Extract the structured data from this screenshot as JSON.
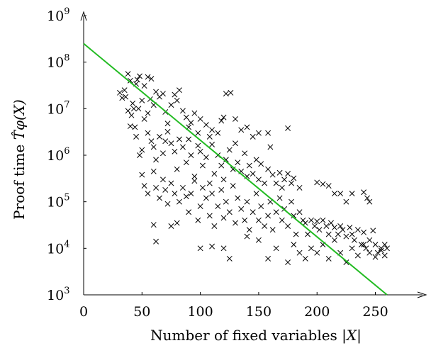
{
  "chart_data": {
    "type": "scatter",
    "title": "",
    "xlabel_text": "Number of fixed variables ",
    "xlabel_math": "|X|",
    "ylabel_text": "Proof time ",
    "ylabel_math": "T̂φ(X)",
    "xlim": [
      0,
      260
    ],
    "ylim": [
      1000,
      1000000000
    ],
    "yscale": "log",
    "grid": false,
    "x_ticks": [
      {
        "value": 0,
        "label": "0"
      },
      {
        "value": 50,
        "label": "50"
      },
      {
        "value": 100,
        "label": "100"
      },
      {
        "value": 150,
        "label": "150"
      },
      {
        "value": 200,
        "label": "200"
      },
      {
        "value": 250,
        "label": "250"
      }
    ],
    "y_ticks": [
      {
        "exp": 3,
        "base": "10",
        "sup": "3"
      },
      {
        "exp": 4,
        "base": "10",
        "sup": "4"
      },
      {
        "exp": 5,
        "base": "10",
        "sup": "5"
      },
      {
        "exp": 6,
        "base": "10",
        "sup": "6"
      },
      {
        "exp": 7,
        "base": "10",
        "sup": "7"
      },
      {
        "exp": 8,
        "base": "10",
        "sup": "8"
      },
      {
        "exp": 9,
        "base": "10",
        "sup": "9"
      }
    ],
    "marker": "x",
    "marker_color": "#000000",
    "fit_line": {
      "color": "#22bb22",
      "x": [
        0,
        260
      ],
      "y": [
        250000000,
        1000
      ]
    },
    "points": [
      [
        31,
        22000000.0
      ],
      [
        33,
        17000000.0
      ],
      [
        35,
        25000000.0
      ],
      [
        36,
        18000000.0
      ],
      [
        38,
        56000000.0
      ],
      [
        40,
        40000000.0
      ],
      [
        42,
        13000000.0
      ],
      [
        43,
        10000000.0
      ],
      [
        45,
        34000000.0
      ],
      [
        46,
        42000000.0
      ],
      [
        48,
        50000000.0
      ],
      [
        50,
        15000000.0
      ],
      [
        52,
        31000000.0
      ],
      [
        55,
        48000000.0
      ],
      [
        58,
        44000000.0
      ],
      [
        38,
        9000000.0
      ],
      [
        41,
        7200000.0
      ],
      [
        44,
        4000000.0
      ],
      [
        47,
        10000000.0
      ],
      [
        52,
        6000000.0
      ],
      [
        55,
        8000000.0
      ],
      [
        57,
        16000000.0
      ],
      [
        60,
        12000000.0
      ],
      [
        62,
        23000000.0
      ],
      [
        65,
        18000000.0
      ],
      [
        68,
        21000000.0
      ],
      [
        70,
        8500000.0
      ],
      [
        72,
        4800000.0
      ],
      [
        75,
        12000000.0
      ],
      [
        78,
        20000000.0
      ],
      [
        80,
        15000000.0
      ],
      [
        82,
        25000000.0
      ],
      [
        85,
        9000000.0
      ],
      [
        88,
        6500000.0
      ],
      [
        90,
        4000000.0
      ],
      [
        92,
        5000000.0
      ],
      [
        95,
        8000000.0
      ],
      [
        98,
        3000000.0
      ],
      [
        100,
        6000000.0
      ],
      [
        105,
        4500000.0
      ],
      [
        108,
        2500000.0
      ],
      [
        110,
        3500000.0
      ],
      [
        115,
        3000000.0
      ],
      [
        118,
        5500000.0
      ],
      [
        120,
        6500000.0
      ],
      [
        122,
        21000000.0
      ],
      [
        126,
        22000000.0
      ],
      [
        130,
        6000000.0
      ],
      [
        135,
        3500000.0
      ],
      [
        140,
        4000000.0
      ],
      [
        145,
        2500000.0
      ],
      [
        150,
        3000000.0
      ],
      [
        158,
        3000000.0
      ],
      [
        175,
        3800000.0
      ],
      [
        40,
        4200000.0
      ],
      [
        45,
        2500000.0
      ],
      [
        48,
        1000000.0
      ],
      [
        50,
        1300000.0
      ],
      [
        55,
        3000000.0
      ],
      [
        58,
        2000000.0
      ],
      [
        60,
        1500000.0
      ],
      [
        62,
        800000.0
      ],
      [
        65,
        2500000.0
      ],
      [
        68,
        1100000.0
      ],
      [
        70,
        2000000.0
      ],
      [
        72,
        3200000.0
      ],
      [
        75,
        1800000.0
      ],
      [
        78,
        1200000.0
      ],
      [
        80,
        500000.0
      ],
      [
        82,
        2200000.0
      ],
      [
        85,
        1500000.0
      ],
      [
        88,
        700000.0
      ],
      [
        90,
        2200000.0
      ],
      [
        92,
        1000000.0
      ],
      [
        95,
        350000.0
      ],
      [
        98,
        1600000.0
      ],
      [
        100,
        1200000.0
      ],
      [
        102,
        600000.0
      ],
      [
        105,
        900000.0
      ],
      [
        108,
        250000.0
      ],
      [
        110,
        1700000.0
      ],
      [
        112,
        400000.0
      ],
      [
        115,
        1000000.0
      ],
      [
        118,
        600000.0
      ],
      [
        120,
        300000.0
      ],
      [
        122,
        800000.0
      ],
      [
        125,
        1300000.0
      ],
      [
        128,
        500000.0
      ],
      [
        130,
        1800000.0
      ],
      [
        132,
        700000.0
      ],
      [
        135,
        450000.0
      ],
      [
        138,
        1100000.0
      ],
      [
        140,
        350000.0
      ],
      [
        142,
        600000.0
      ],
      [
        145,
        400000.0
      ],
      [
        148,
        800000.0
      ],
      [
        150,
        300000.0
      ],
      [
        152,
        650000.0
      ],
      [
        155,
        250000.0
      ],
      [
        158,
        500000.0
      ],
      [
        160,
        1500000.0
      ],
      [
        162,
        380000.0
      ],
      [
        165,
        250000.0
      ],
      [
        168,
        420000.0
      ],
      [
        170,
        200000.0
      ],
      [
        172,
        300000.0
      ],
      [
        175,
        400000.0
      ],
      [
        178,
        250000.0
      ],
      [
        180,
        320000.0
      ],
      [
        185,
        200000.0
      ],
      [
        200,
        260000.0
      ],
      [
        205,
        240000.0
      ],
      [
        210,
        220000.0
      ],
      [
        215,
        150000.0
      ],
      [
        220,
        150000.0
      ],
      [
        225,
        100000.0
      ],
      [
        230,
        150000.0
      ],
      [
        240,
        160000.0
      ],
      [
        243,
        120000.0
      ],
      [
        245,
        100000.0
      ],
      [
        50,
        380000.0
      ],
      [
        52,
        220000.0
      ],
      [
        55,
        150000.0
      ],
      [
        60,
        450000.0
      ],
      [
        62,
        200000.0
      ],
      [
        65,
        120000.0
      ],
      [
        68,
        300000.0
      ],
      [
        70,
        180000.0
      ],
      [
        72,
        90000.0
      ],
      [
        75,
        250000.0
      ],
      [
        78,
        150000.0
      ],
      [
        80,
        35000.0
      ],
      [
        82,
        100000.0
      ],
      [
        85,
        200000.0
      ],
      [
        88,
        130000.0
      ],
      [
        90,
        60000.0
      ],
      [
        92,
        150000.0
      ],
      [
        95,
        280000.0
      ],
      [
        98,
        40000.0
      ],
      [
        100,
        80000.0
      ],
      [
        102,
        200000.0
      ],
      [
        105,
        120000.0
      ],
      [
        108,
        50000.0
      ],
      [
        110,
        150000.0
      ],
      [
        112,
        30000.0
      ],
      [
        115,
        80000.0
      ],
      [
        118,
        180000.0
      ],
      [
        120,
        45000.0
      ],
      [
        122,
        100000.0
      ],
      [
        125,
        60000.0
      ],
      [
        128,
        220000.0
      ],
      [
        130,
        35000.0
      ],
      [
        132,
        120000.0
      ],
      [
        135,
        70000.0
      ],
      [
        138,
        40000.0
      ],
      [
        140,
        100000.0
      ],
      [
        142,
        25000.0
      ],
      [
        145,
        60000.0
      ],
      [
        148,
        150000.0
      ],
      [
        150,
        40000.0
      ],
      [
        152,
        80000.0
      ],
      [
        155,
        30000.0
      ],
      [
        158,
        50000.0
      ],
      [
        160,
        100000.0
      ],
      [
        162,
        25000.0
      ],
      [
        165,
        60000.0
      ],
      [
        168,
        120000.0
      ],
      [
        170,
        40000.0
      ],
      [
        172,
        70000.0
      ],
      [
        175,
        30000.0
      ],
      [
        178,
        100000.0
      ],
      [
        180,
        50000.0
      ],
      [
        182,
        20000.0
      ],
      [
        185,
        60000.0
      ],
      [
        188,
        40000.0
      ],
      [
        190,
        35000.0
      ],
      [
        192,
        20000.0
      ],
      [
        195,
        40000.0
      ],
      [
        198,
        30000.0
      ],
      [
        200,
        38000.0
      ],
      [
        202,
        25000.0
      ],
      [
        205,
        40000.0
      ],
      [
        208,
        30000.0
      ],
      [
        210,
        20000.0
      ],
      [
        212,
        35000.0
      ],
      [
        215,
        28000.0
      ],
      [
        218,
        20000.0
      ],
      [
        220,
        30000.0
      ],
      [
        222,
        25000.0
      ],
      [
        225,
        18000.0
      ],
      [
        228,
        28000.0
      ],
      [
        230,
        20000.0
      ],
      [
        232,
        15000.0
      ],
      [
        235,
        25000.0
      ],
      [
        238,
        12000.0
      ],
      [
        240,
        22000.0
      ],
      [
        242,
        10000.0
      ],
      [
        245,
        15000.0
      ],
      [
        248,
        24000.0
      ],
      [
        250,
        12000.0
      ],
      [
        252,
        8000.0
      ],
      [
        255,
        10000.0
      ],
      [
        258,
        12000.0
      ],
      [
        260,
        10000.0
      ],
      [
        60,
        32000.0
      ],
      [
        62,
        14000.0
      ],
      [
        75,
        30000.0
      ],
      [
        100,
        10000.0
      ],
      [
        110,
        11000.0
      ],
      [
        120,
        10000.0
      ],
      [
        125,
        6000.0
      ],
      [
        140,
        18000.0
      ],
      [
        150,
        15000.0
      ],
      [
        158,
        6000.0
      ],
      [
        165,
        10000.0
      ],
      [
        175,
        5000.0
      ],
      [
        180,
        12000.0
      ],
      [
        185,
        8000.0
      ],
      [
        190,
        6000.0
      ],
      [
        195,
        10000.0
      ],
      [
        200,
        8000.0
      ],
      [
        205,
        12000.0
      ],
      [
        210,
        6000.0
      ],
      [
        215,
        15000.0
      ],
      [
        220,
        8000.0
      ],
      [
        225,
        5000.0
      ],
      [
        230,
        10000.0
      ],
      [
        235,
        7000.0
      ],
      [
        240,
        12000.0
      ],
      [
        245,
        8000.0
      ],
      [
        250,
        6500.0
      ],
      [
        255,
        9000.0
      ],
      [
        258,
        7000.0
      ]
    ]
  }
}
